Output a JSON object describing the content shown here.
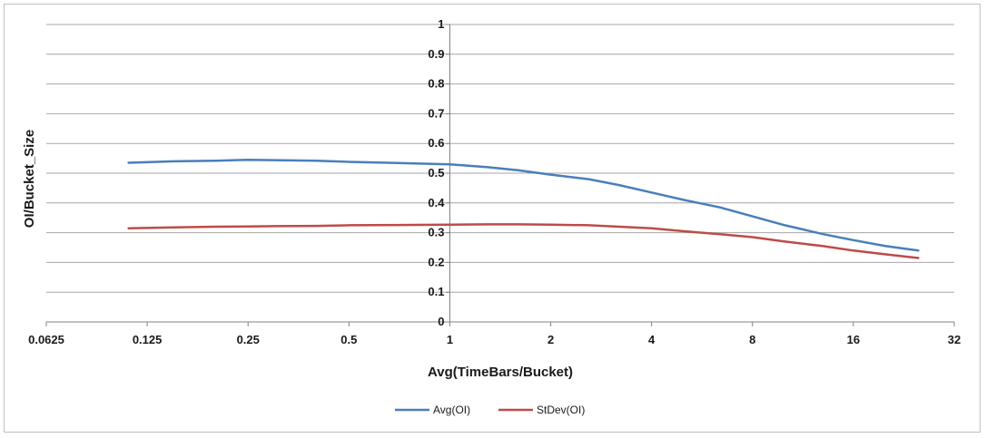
{
  "chart_data": {
    "type": "line",
    "title": "",
    "xlabel": "Avg(TimeBars/Bucket)",
    "ylabel": "OI/Bucket_Size",
    "x_scale": "log2",
    "xlim": [
      0.0625,
      32
    ],
    "ylim": [
      0,
      1
    ],
    "x_ticks": [
      0.0625,
      0.125,
      0.25,
      0.5,
      1,
      2,
      4,
      8,
      16,
      32
    ],
    "x_tick_labels": [
      "0.0625",
      "0.125",
      "0.25",
      "0.5",
      "1",
      "2",
      "4",
      "8",
      "16",
      "32"
    ],
    "y_ticks": [
      0,
      0.1,
      0.2,
      0.3,
      0.4,
      0.5,
      0.6,
      0.7,
      0.8,
      0.9,
      1
    ],
    "y_tick_labels": [
      "0",
      "0.1",
      "0.2",
      "0.3",
      "0.4",
      "0.5",
      "0.6",
      "0.7",
      "0.8",
      "0.9",
      "1"
    ],
    "grid": "horizontal",
    "legend": "bottom-center",
    "series": [
      {
        "name": "Avg(OI)",
        "color": "#4a7ebb",
        "x": [
          0.11,
          0.15,
          0.2,
          0.25,
          0.3,
          0.4,
          0.5,
          0.7,
          1.0,
          1.3,
          1.6,
          2.0,
          2.6,
          3.2,
          4.0,
          5.0,
          6.4,
          8.0,
          10.0,
          13.0,
          16.0,
          20.0,
          25.0
        ],
        "y": [
          0.535,
          0.54,
          0.542,
          0.545,
          0.544,
          0.542,
          0.538,
          0.534,
          0.53,
          0.52,
          0.51,
          0.495,
          0.48,
          0.46,
          0.435,
          0.41,
          0.385,
          0.355,
          0.325,
          0.295,
          0.275,
          0.255,
          0.24
        ]
      },
      {
        "name": "StDev(OI)",
        "color": "#be4b48",
        "x": [
          0.11,
          0.15,
          0.2,
          0.25,
          0.3,
          0.4,
          0.5,
          0.7,
          1.0,
          1.3,
          1.6,
          2.0,
          2.6,
          3.2,
          4.0,
          5.0,
          6.4,
          8.0,
          10.0,
          13.0,
          16.0,
          20.0,
          25.0
        ],
        "y": [
          0.315,
          0.318,
          0.32,
          0.321,
          0.322,
          0.323,
          0.325,
          0.326,
          0.327,
          0.328,
          0.328,
          0.327,
          0.325,
          0.32,
          0.315,
          0.305,
          0.295,
          0.285,
          0.27,
          0.255,
          0.24,
          0.227,
          0.215
        ]
      }
    ]
  }
}
